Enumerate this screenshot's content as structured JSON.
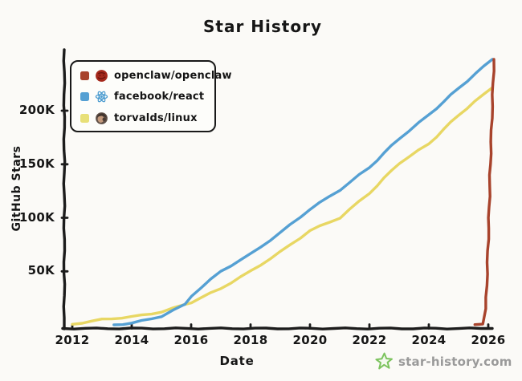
{
  "chart_data": {
    "type": "line",
    "title": "Star History",
    "xlabel": "Date",
    "ylabel": "GitHub Stars",
    "units": "stars in thousands",
    "grid": false,
    "legend_position": "top-left",
    "x_range": [
      2011.7,
      2026.4
    ],
    "y_range_thousands": [
      0,
      255
    ],
    "x_tick_years": [
      2012,
      2014,
      2016,
      2018,
      2020,
      2022,
      2024,
      2026
    ],
    "x_tick_labels": [
      "2012",
      "2014",
      "2016",
      "2018",
      "2020",
      "2022",
      "2024",
      "2026"
    ],
    "y_tick_values_thousands": [
      50,
      100,
      150,
      200
    ],
    "y_tick_labels": [
      "50K",
      "100K",
      "150K",
      "200K"
    ],
    "series": [
      {
        "name": "openclaw/openclaw",
        "color": "#a8432c",
        "icon": "openclaw-avatar",
        "points": [
          [
            2025.55,
            0.2
          ],
          [
            2025.8,
            1
          ],
          [
            2025.92,
            15
          ],
          [
            2026.0,
            80
          ],
          [
            2026.08,
            160
          ],
          [
            2026.19,
            248
          ]
        ]
      },
      {
        "name": "facebook/react",
        "color": "#55a0d3",
        "icon": "react-logo",
        "points": [
          [
            2013.4,
            0
          ],
          [
            2014,
            1.5
          ],
          [
            2015,
            8
          ],
          [
            2015.8,
            19
          ],
          [
            2016,
            27
          ],
          [
            2017,
            50
          ],
          [
            2018,
            66
          ],
          [
            2019,
            86
          ],
          [
            2020,
            108
          ],
          [
            2021,
            126
          ],
          [
            2022,
            147
          ],
          [
            2023,
            174
          ],
          [
            2024,
            196
          ],
          [
            2025,
            221
          ],
          [
            2026.14,
            248
          ]
        ]
      },
      {
        "name": "torvalds/linux",
        "color": "#e8d763",
        "icon": "torvalds-avatar",
        "points": [
          [
            2012,
            0.5
          ],
          [
            2013,
            5
          ],
          [
            2014,
            7.5
          ],
          [
            2015,
            12
          ],
          [
            2015.8,
            19
          ],
          [
            2016,
            21
          ],
          [
            2017,
            34
          ],
          [
            2018,
            50
          ],
          [
            2019,
            68
          ],
          [
            2020,
            88
          ],
          [
            2021,
            100
          ],
          [
            2022,
            123
          ],
          [
            2023,
            151
          ],
          [
            2024,
            169
          ],
          [
            2025,
            196
          ],
          [
            2026.11,
            221
          ]
        ]
      }
    ]
  },
  "watermark": {
    "label": "star-history.com",
    "icon": "star-logo",
    "text_color": "#9a9a9a",
    "star_color": "#7cc35e"
  }
}
